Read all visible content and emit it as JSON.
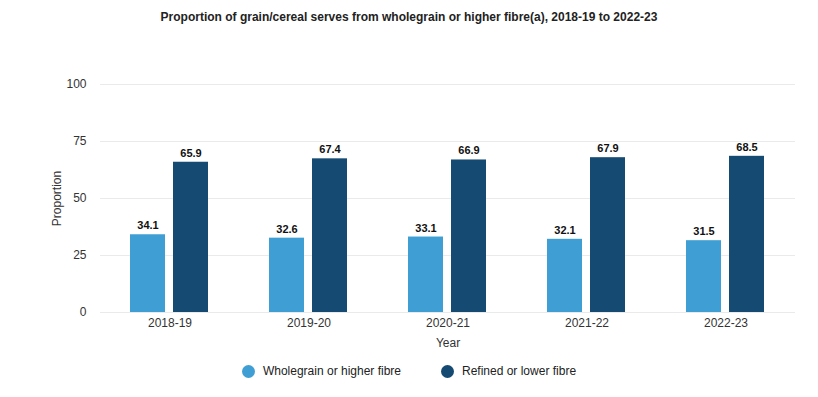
{
  "chart_data": {
    "type": "bar",
    "title": "Proportion of grain/cereal serves from wholegrain or higher fibre(a), 2018-19 to 2022-23",
    "x_label": "Year",
    "y_label": "Proportion",
    "categories": [
      "2018-19",
      "2019-20",
      "2020-21",
      "2021-22",
      "2022-23"
    ],
    "series": [
      {
        "name": "Wholegrain or higher fibre",
        "color": "#3f9fd4",
        "values": [
          34.1,
          32.6,
          33.1,
          32.1,
          31.5
        ]
      },
      {
        "name": "Refined or lower fibre",
        "color": "#154a72",
        "values": [
          65.9,
          67.4,
          66.9,
          67.9,
          68.5
        ]
      }
    ],
    "ylim": [
      0,
      100
    ],
    "yticks": [
      0,
      25,
      50,
      75,
      100
    ],
    "grid": true,
    "legend": "bottom",
    "data_labels": true
  }
}
